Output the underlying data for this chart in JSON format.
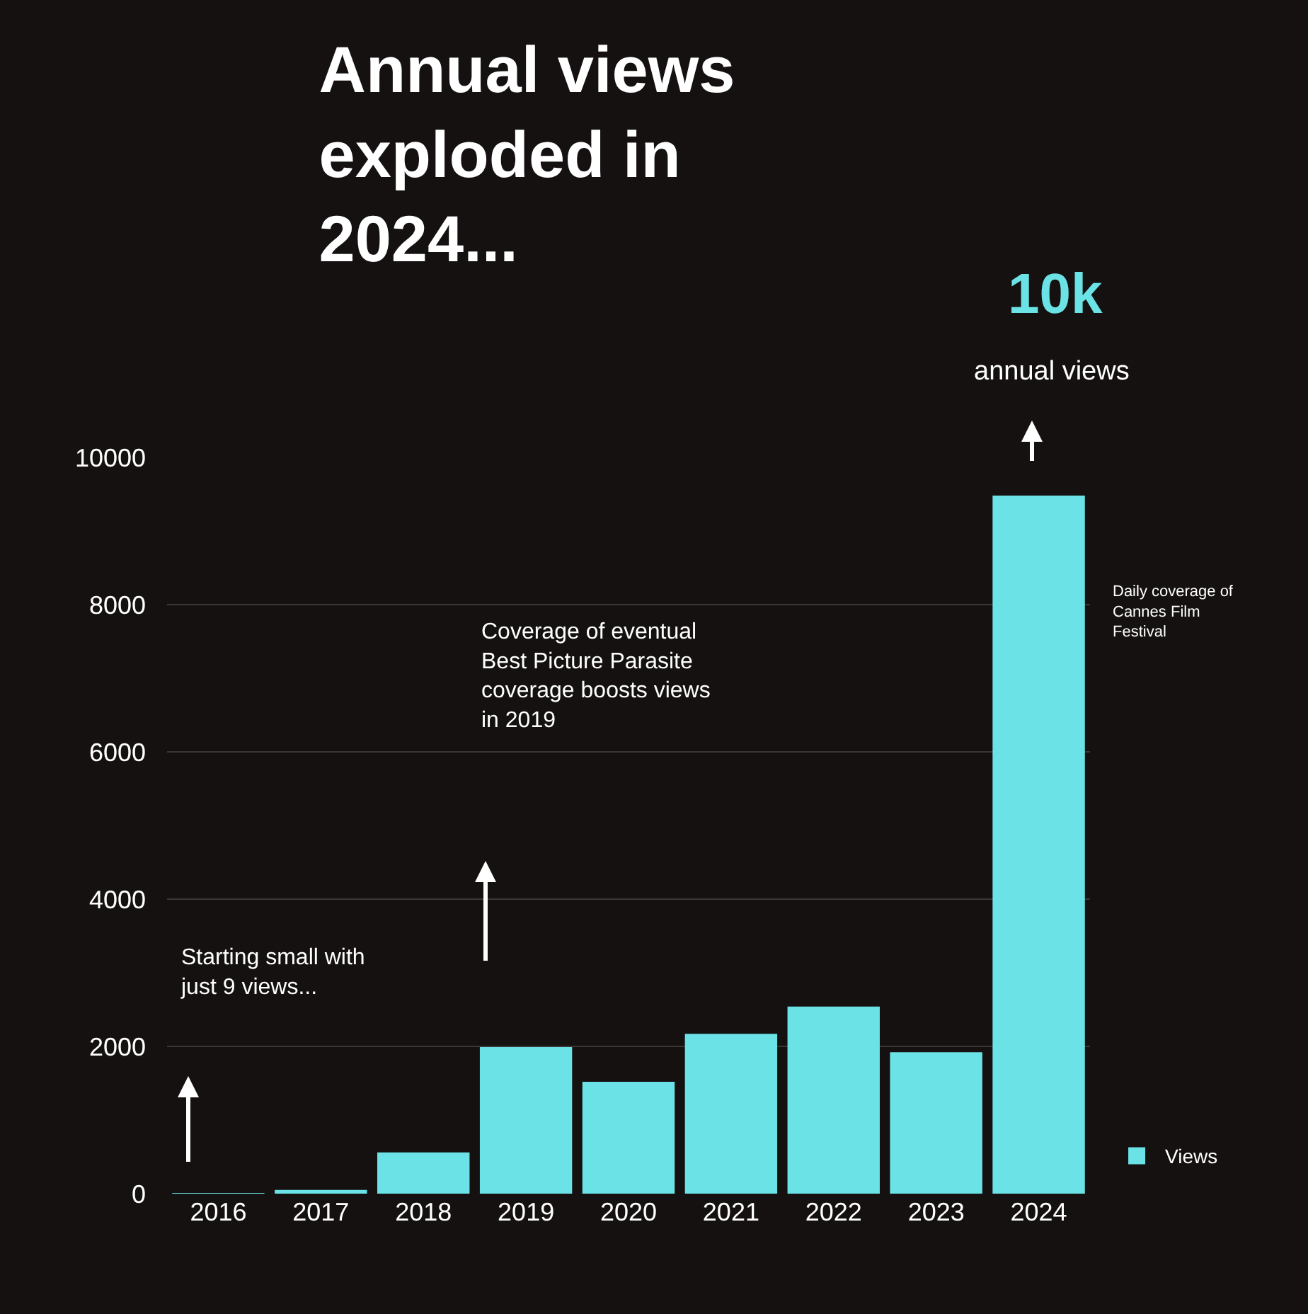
{
  "chart_data": {
    "type": "bar",
    "title": "Annual views exploded in 2024...",
    "categories": [
      "2016",
      "2017",
      "2018",
      "2019",
      "2020",
      "2021",
      "2022",
      "2023",
      "2024"
    ],
    "series": [
      {
        "name": "Views",
        "color": "#6be3e6",
        "values": [
          9,
          50,
          560,
          1990,
          1520,
          2170,
          2540,
          1920,
          9480
        ]
      }
    ],
    "ylim": [
      0,
      10000
    ],
    "yticks": [
      0,
      2000,
      4000,
      6000,
      8000,
      10000
    ],
    "grid": "y",
    "legend": "bottom right",
    "annotations": [
      "10k",
      "annual views",
      "Daily coverage of Cannes Film Festival",
      "Coverage of eventual Best Picture Parasite coverage boosts views in 2019",
      "Starting small with just 9 views..."
    ]
  }
}
